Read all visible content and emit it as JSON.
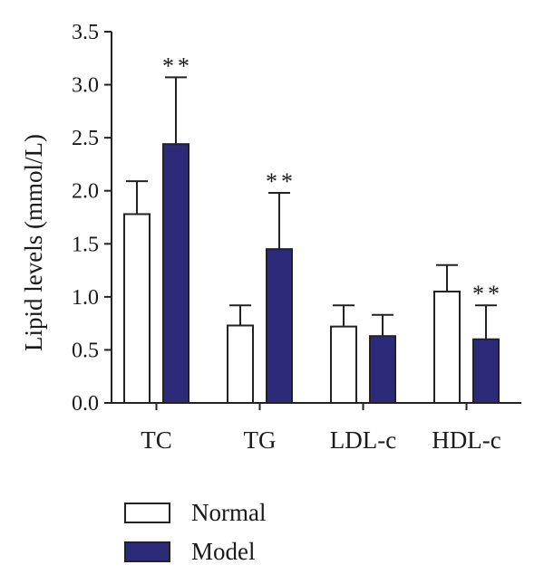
{
  "chart_data": {
    "type": "bar",
    "title": "",
    "xlabel": "",
    "ylabel": "Lipid levels (mmol/L)",
    "ylim": [
      0,
      3.5
    ],
    "yticks": [
      "0.0",
      "0.5",
      "1.0",
      "1.5",
      "2.0",
      "2.5",
      "3.0",
      "3.5"
    ],
    "categories": [
      "TC",
      "TG",
      "LDL-c",
      "HDL-c"
    ],
    "series": [
      {
        "name": "Normal",
        "color": "#ffffff",
        "values": [
          1.78,
          0.73,
          0.72,
          1.05
        ],
        "errors": [
          0.31,
          0.19,
          0.2,
          0.25
        ]
      },
      {
        "name": "Model",
        "color": "#2e2a7a",
        "values": [
          2.44,
          1.45,
          0.63,
          0.6
        ],
        "errors": [
          0.63,
          0.53,
          0.2,
          0.32
        ]
      }
    ],
    "annotations": [
      {
        "category": "TC",
        "series": "Model",
        "text": "**"
      },
      {
        "category": "TG",
        "series": "Model",
        "text": "**"
      },
      {
        "category": "HDL-c",
        "series": "Model",
        "text": "**"
      }
    ],
    "grid": false,
    "legend_position": "bottom-left"
  }
}
